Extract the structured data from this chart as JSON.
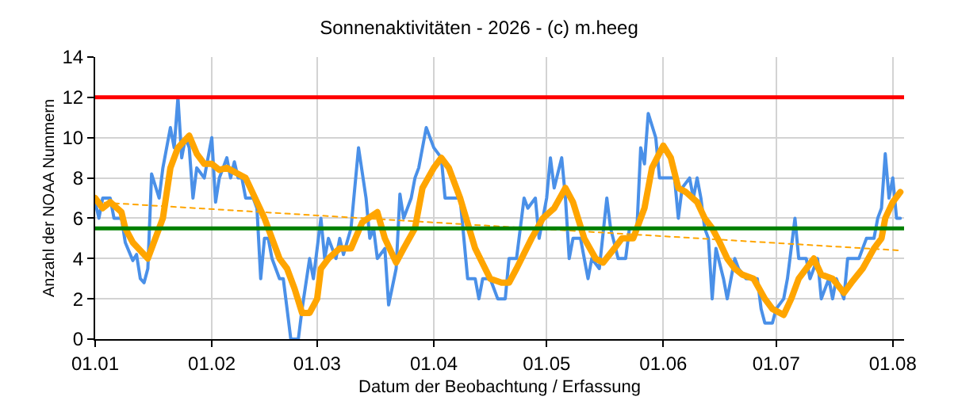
{
  "chart_data": {
    "type": "line",
    "title": "Sonnenaktivitäten - 2026 - (c) m.heeg",
    "xlabel": "Datum der Beobachtung / Erfassung",
    "ylabel": "Anzahl der NOAA Nummern",
    "xlim": [
      "2026-01-01",
      "2026-08-04"
    ],
    "xticks": [
      {
        "value": "2026-01-01",
        "label": "01.01"
      },
      {
        "value": "2026-02-01",
        "label": "01.02"
      },
      {
        "value": "2026-03-01",
        "label": "01.03"
      },
      {
        "value": "2026-04-01",
        "label": "01.04"
      },
      {
        "value": "2026-05-01",
        "label": "01.05"
      },
      {
        "value": "2026-06-01",
        "label": "01.06"
      },
      {
        "value": "2026-07-01",
        "label": "01.07"
      },
      {
        "value": "2026-08-01",
        "label": "01.08"
      }
    ],
    "ylim": [
      0,
      14
    ],
    "yticks": [
      0,
      2,
      4,
      6,
      8,
      10,
      12,
      14
    ],
    "grid": true,
    "series": [
      {
        "color": "#4a90e8",
        "line_style": "solid",
        "x": [
          "2026-01-01",
          "2026-01-02",
          "2026-01-03",
          "2026-01-05",
          "2026-01-06",
          "2026-01-08",
          "2026-01-09",
          "2026-01-11",
          "2026-01-12",
          "2026-01-13",
          "2026-01-14",
          "2026-01-15",
          "2026-01-16",
          "2026-01-18",
          "2026-01-19",
          "2026-01-21",
          "2026-01-22",
          "2026-01-23",
          "2026-01-24",
          "2026-01-25",
          "2026-01-26",
          "2026-01-27",
          "2026-01-28",
          "2026-01-30",
          "2026-02-01",
          "2026-02-02",
          "2026-02-03",
          "2026-02-05",
          "2026-02-06",
          "2026-02-07",
          "2026-02-08",
          "2026-02-09",
          "2026-02-10",
          "2026-02-12",
          "2026-02-13",
          "2026-02-14",
          "2026-02-15",
          "2026-02-16",
          "2026-02-17",
          "2026-02-19",
          "2026-02-20",
          "2026-02-21",
          "2026-02-22",
          "2026-02-24",
          "2026-02-25",
          "2026-02-27",
          "2026-02-28",
          "2026-03-02",
          "2026-03-03",
          "2026-03-04",
          "2026-03-06",
          "2026-03-07",
          "2026-03-08",
          "2026-03-10",
          "2026-03-12",
          "2026-03-14",
          "2026-03-15",
          "2026-03-16",
          "2026-03-17",
          "2026-03-19",
          "2026-03-20",
          "2026-03-22",
          "2026-03-23",
          "2026-03-24",
          "2026-03-26",
          "2026-03-27",
          "2026-03-28",
          "2026-03-30",
          "2026-04-01",
          "2026-04-03",
          "2026-04-04",
          "2026-04-06",
          "2026-04-08",
          "2026-04-10",
          "2026-04-12",
          "2026-04-13",
          "2026-04-14",
          "2026-04-16",
          "2026-04-18",
          "2026-04-20",
          "2026-04-21",
          "2026-04-23",
          "2026-04-25",
          "2026-04-26",
          "2026-04-28",
          "2026-04-29",
          "2026-05-01",
          "2026-05-02",
          "2026-05-03",
          "2026-05-05",
          "2026-05-06",
          "2026-05-07",
          "2026-05-08",
          "2026-05-10",
          "2026-05-12",
          "2026-05-13",
          "2026-05-15",
          "2026-05-17",
          "2026-05-18",
          "2026-05-20",
          "2026-05-22",
          "2026-05-23",
          "2026-05-25",
          "2026-05-26",
          "2026-05-27",
          "2026-05-28",
          "2026-05-30",
          "2026-05-31",
          "2026-06-02",
          "2026-06-04",
          "2026-06-05",
          "2026-06-06",
          "2026-06-08",
          "2026-06-09",
          "2026-06-10",
          "2026-06-11",
          "2026-06-12",
          "2026-06-13",
          "2026-06-14",
          "2026-06-15",
          "2026-06-17",
          "2026-06-18",
          "2026-06-20",
          "2026-06-21",
          "2026-06-23",
          "2026-06-24",
          "2026-06-26",
          "2026-06-27",
          "2026-06-28",
          "2026-06-30",
          "2026-07-01",
          "2026-07-03",
          "2026-07-04",
          "2026-07-06",
          "2026-07-07",
          "2026-07-09",
          "2026-07-10",
          "2026-07-12",
          "2026-07-13",
          "2026-07-15",
          "2026-07-16",
          "2026-07-17",
          "2026-07-19",
          "2026-07-20",
          "2026-07-22",
          "2026-07-23",
          "2026-07-25",
          "2026-07-27",
          "2026-07-28",
          "2026-07-29",
          "2026-07-30",
          "2026-07-31",
          "2026-08-01",
          "2026-08-02",
          "2026-08-03"
        ],
        "values": [
          6.8,
          6.0,
          7.0,
          7.0,
          6.0,
          6.0,
          4.8,
          3.9,
          4.2,
          3.0,
          2.8,
          3.5,
          8.2,
          7.0,
          8.5,
          10.5,
          9.5,
          12.0,
          9.0,
          10.0,
          9.5,
          7.0,
          8.5,
          8.0,
          10.0,
          6.8,
          8.0,
          9.0,
          8.0,
          8.8,
          8.0,
          8.0,
          7.0,
          7.0,
          6.5,
          3.0,
          5.0,
          5.0,
          4.0,
          3.0,
          3.0,
          1.5,
          0.0,
          0.0,
          1.5,
          4.0,
          3.0,
          6.0,
          4.0,
          5.0,
          4.0,
          5.0,
          4.2,
          5.5,
          9.5,
          7.0,
          5.0,
          5.5,
          4.0,
          4.5,
          1.7,
          3.5,
          7.2,
          6.0,
          7.0,
          8.0,
          8.5,
          10.5,
          9.5,
          9.0,
          7.0,
          7.0,
          7.0,
          3.0,
          3.0,
          2.0,
          3.0,
          3.0,
          2.0,
          2.0,
          4.0,
          4.0,
          7.0,
          6.5,
          7.0,
          5.0,
          7.0,
          9.0,
          7.5,
          9.0,
          7.0,
          4.0,
          5.0,
          5.0,
          3.0,
          4.0,
          3.5,
          7.0,
          5.5,
          4.0,
          4.0,
          5.5,
          5.5,
          9.5,
          8.7,
          11.2,
          10.0,
          8.0,
          8.0,
          8.0,
          6.0,
          7.5,
          8.0,
          7.0,
          8.0,
          7.0,
          5.5,
          5.0,
          2.0,
          4.5,
          3.0,
          2.0,
          4.0,
          3.5,
          3.0,
          3.0,
          3.0,
          1.5,
          0.8,
          0.8,
          1.5,
          2.0,
          3.0,
          6.0,
          4.0,
          4.0,
          3.0,
          4.0,
          2.0,
          3.0,
          2.0,
          3.0,
          2.0,
          4.0,
          4.0,
          4.0,
          5.0,
          5.0,
          6.0,
          6.5,
          9.2,
          7.0,
          8.0,
          6.0,
          6.0
        ]
      },
      {
        "color": "#ffa500",
        "line_style": "solid",
        "x": [
          "2026-01-01",
          "2026-01-03",
          "2026-01-05",
          "2026-01-08",
          "2026-01-09",
          "2026-01-11",
          "2026-01-15",
          "2026-01-17",
          "2026-01-19",
          "2026-01-21",
          "2026-01-23",
          "2026-01-26",
          "2026-01-28",
          "2026-01-30",
          "2026-02-01",
          "2026-02-03",
          "2026-02-05",
          "2026-02-08",
          "2026-02-10",
          "2026-02-12",
          "2026-02-15",
          "2026-02-17",
          "2026-02-19",
          "2026-02-21",
          "2026-02-23",
          "2026-02-25",
          "2026-02-27",
          "2026-03-01",
          "2026-03-02",
          "2026-03-04",
          "2026-03-07",
          "2026-03-10",
          "2026-03-13",
          "2026-03-17",
          "2026-03-19",
          "2026-03-22",
          "2026-03-24",
          "2026-03-27",
          "2026-03-29",
          "2026-04-01",
          "2026-04-03",
          "2026-04-05",
          "2026-04-08",
          "2026-04-12",
          "2026-04-16",
          "2026-04-19",
          "2026-04-21",
          "2026-04-23",
          "2026-04-27",
          "2026-04-30",
          "2026-05-03",
          "2026-05-06",
          "2026-05-08",
          "2026-05-11",
          "2026-05-14",
          "2026-05-16",
          "2026-05-19",
          "2026-05-21",
          "2026-05-24",
          "2026-05-25",
          "2026-05-27",
          "2026-05-29",
          "2026-06-01",
          "2026-06-03",
          "2026-06-05",
          "2026-06-07",
          "2026-06-10",
          "2026-06-12",
          "2026-06-14",
          "2026-06-16",
          "2026-06-18",
          "2026-06-20",
          "2026-06-22",
          "2026-06-25",
          "2026-06-28",
          "2026-06-30",
          "2026-07-03",
          "2026-07-05",
          "2026-07-07",
          "2026-07-09",
          "2026-07-11",
          "2026-07-13",
          "2026-07-16",
          "2026-07-19",
          "2026-07-21",
          "2026-07-24",
          "2026-07-27",
          "2026-07-29",
          "2026-07-30",
          "2026-08-01",
          "2026-08-03"
        ],
        "values": [
          7.0,
          6.5,
          6.8,
          6.3,
          5.5,
          4.8,
          4.0,
          5.0,
          6.0,
          8.5,
          9.5,
          10.1,
          9.2,
          8.7,
          8.7,
          8.4,
          8.5,
          8.2,
          8.0,
          7.2,
          6.0,
          5.0,
          4.0,
          3.5,
          2.5,
          1.3,
          1.3,
          2.0,
          3.5,
          4.0,
          4.5,
          4.5,
          5.8,
          6.3,
          5.0,
          3.8,
          4.5,
          5.5,
          7.5,
          8.5,
          9.0,
          8.5,
          7.0,
          4.5,
          3.0,
          2.8,
          2.8,
          3.5,
          5.0,
          6.0,
          6.5,
          7.5,
          6.8,
          5.0,
          4.0,
          3.8,
          4.5,
          5.0,
          5.0,
          5.5,
          6.5,
          8.5,
          9.6,
          9.0,
          7.5,
          7.3,
          6.8,
          6.0,
          5.5,
          4.8,
          4.0,
          3.5,
          3.2,
          3.0,
          2.0,
          1.5,
          1.2,
          2.0,
          3.0,
          3.5,
          4.0,
          3.2,
          3.0,
          2.3,
          2.8,
          3.5,
          4.5,
          5.0,
          6.0,
          6.8,
          7.3
        ]
      },
      {
        "color": "#ffa500",
        "line_style": "dotted",
        "x": [
          "2026-01-01",
          "2026-08-03"
        ],
        "values": [
          6.8,
          4.4
        ]
      }
    ],
    "ref_lines": [
      {
        "axis": "y",
        "value": 12,
        "color": "#ff0000"
      },
      {
        "axis": "y",
        "value": 5.5,
        "color": "#008000"
      }
    ]
  }
}
